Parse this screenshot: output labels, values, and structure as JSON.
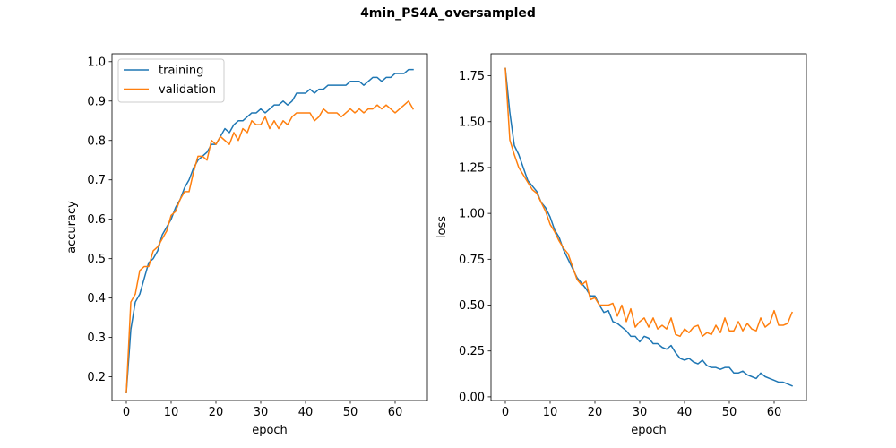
{
  "figure": {
    "title": "4min_PS4A_oversampled"
  },
  "colors": {
    "training": "#1f77b4",
    "validation": "#ff7f0e",
    "axes": "#000000",
    "background": "#ffffff"
  },
  "chart_data": [
    {
      "type": "line",
      "title": "",
      "xlabel": "epoch",
      "ylabel": "accuracy",
      "xlim": [
        -3.2,
        67.2
      ],
      "ylim": [
        0.14,
        1.02
      ],
      "xticks": [
        0,
        10,
        20,
        30,
        40,
        50,
        60
      ],
      "xtick_labels": [
        "0",
        "10",
        "20",
        "30",
        "40",
        "50",
        "60"
      ],
      "yticks": [
        0.2,
        0.3,
        0.4,
        0.5,
        0.6,
        0.7,
        0.8,
        0.9,
        1.0
      ],
      "ytick_labels": [
        "0.2",
        "0.3",
        "0.4",
        "0.5",
        "0.6",
        "0.7",
        "0.8",
        "0.9",
        "1.0"
      ],
      "legend": {
        "placement": "upper-left",
        "entries": [
          "training",
          "validation"
        ]
      },
      "grid": false,
      "x": [
        0,
        1,
        2,
        3,
        4,
        5,
        6,
        7,
        8,
        9,
        10,
        11,
        12,
        13,
        14,
        15,
        16,
        17,
        18,
        19,
        20,
        21,
        22,
        23,
        24,
        25,
        26,
        27,
        28,
        29,
        30,
        31,
        32,
        33,
        34,
        35,
        36,
        37,
        38,
        39,
        40,
        41,
        42,
        43,
        44,
        45,
        46,
        47,
        48,
        49,
        50,
        51,
        52,
        53,
        54,
        55,
        56,
        57,
        58,
        59,
        60,
        61,
        62,
        63,
        64
      ],
      "series": [
        {
          "name": "training",
          "values": [
            0.16,
            0.32,
            0.39,
            0.41,
            0.45,
            0.49,
            0.5,
            0.52,
            0.56,
            0.58,
            0.6,
            0.63,
            0.65,
            0.68,
            0.7,
            0.73,
            0.75,
            0.76,
            0.77,
            0.79,
            0.79,
            0.81,
            0.83,
            0.82,
            0.84,
            0.85,
            0.85,
            0.86,
            0.87,
            0.87,
            0.88,
            0.87,
            0.88,
            0.89,
            0.89,
            0.9,
            0.89,
            0.9,
            0.92,
            0.92,
            0.92,
            0.93,
            0.92,
            0.93,
            0.93,
            0.94,
            0.94,
            0.94,
            0.94,
            0.94,
            0.95,
            0.95,
            0.95,
            0.94,
            0.95,
            0.96,
            0.96,
            0.95,
            0.96,
            0.96,
            0.97,
            0.97,
            0.97,
            0.98,
            0.98
          ]
        },
        {
          "name": "validation",
          "values": [
            0.16,
            0.39,
            0.41,
            0.47,
            0.48,
            0.48,
            0.52,
            0.53,
            0.55,
            0.57,
            0.61,
            0.62,
            0.65,
            0.67,
            0.67,
            0.72,
            0.76,
            0.76,
            0.75,
            0.8,
            0.79,
            0.81,
            0.8,
            0.79,
            0.82,
            0.8,
            0.83,
            0.82,
            0.85,
            0.84,
            0.84,
            0.86,
            0.83,
            0.85,
            0.83,
            0.85,
            0.84,
            0.86,
            0.87,
            0.87,
            0.87,
            0.87,
            0.85,
            0.86,
            0.88,
            0.87,
            0.87,
            0.87,
            0.86,
            0.87,
            0.88,
            0.87,
            0.88,
            0.87,
            0.88,
            0.88,
            0.89,
            0.88,
            0.89,
            0.88,
            0.87,
            0.88,
            0.89,
            0.9,
            0.88
          ]
        }
      ]
    },
    {
      "type": "line",
      "title": "",
      "xlabel": "epoch",
      "ylabel": "loss",
      "xlim": [
        -3.2,
        67.2
      ],
      "ylim": [
        -0.02,
        1.87
      ],
      "xticks": [
        0,
        10,
        20,
        30,
        40,
        50,
        60
      ],
      "xtick_labels": [
        "0",
        "10",
        "20",
        "30",
        "40",
        "50",
        "60"
      ],
      "yticks": [
        0.0,
        0.25,
        0.5,
        0.75,
        1.0,
        1.25,
        1.5,
        1.75
      ],
      "ytick_labels": [
        "0.00",
        "0.25",
        "0.50",
        "0.75",
        "1.00",
        "1.25",
        "1.50",
        "1.75"
      ],
      "legend": null,
      "grid": false,
      "x": [
        0,
        1,
        2,
        3,
        4,
        5,
        6,
        7,
        8,
        9,
        10,
        11,
        12,
        13,
        14,
        15,
        16,
        17,
        18,
        19,
        20,
        21,
        22,
        23,
        24,
        25,
        26,
        27,
        28,
        29,
        30,
        31,
        32,
        33,
        34,
        35,
        36,
        37,
        38,
        39,
        40,
        41,
        42,
        43,
        44,
        45,
        46,
        47,
        48,
        49,
        50,
        51,
        52,
        53,
        54,
        55,
        56,
        57,
        58,
        59,
        60,
        61,
        62,
        63,
        64
      ],
      "series": [
        {
          "name": "training",
          "values": [
            1.79,
            1.55,
            1.37,
            1.32,
            1.25,
            1.18,
            1.15,
            1.12,
            1.06,
            1.03,
            0.98,
            0.91,
            0.87,
            0.8,
            0.75,
            0.7,
            0.65,
            0.62,
            0.59,
            0.55,
            0.55,
            0.5,
            0.46,
            0.47,
            0.41,
            0.4,
            0.38,
            0.36,
            0.33,
            0.33,
            0.3,
            0.33,
            0.32,
            0.29,
            0.29,
            0.27,
            0.26,
            0.28,
            0.24,
            0.21,
            0.2,
            0.21,
            0.19,
            0.18,
            0.2,
            0.17,
            0.16,
            0.16,
            0.15,
            0.16,
            0.16,
            0.13,
            0.13,
            0.14,
            0.12,
            0.11,
            0.1,
            0.13,
            0.11,
            0.1,
            0.09,
            0.08,
            0.08,
            0.07,
            0.06
          ]
        },
        {
          "name": "validation",
          "values": [
            1.79,
            1.4,
            1.32,
            1.25,
            1.21,
            1.17,
            1.13,
            1.11,
            1.06,
            1.01,
            0.94,
            0.9,
            0.85,
            0.81,
            0.78,
            0.71,
            0.64,
            0.61,
            0.63,
            0.53,
            0.54,
            0.5,
            0.5,
            0.5,
            0.51,
            0.44,
            0.5,
            0.41,
            0.48,
            0.38,
            0.41,
            0.43,
            0.38,
            0.43,
            0.37,
            0.39,
            0.37,
            0.43,
            0.34,
            0.33,
            0.37,
            0.35,
            0.38,
            0.39,
            0.33,
            0.35,
            0.34,
            0.39,
            0.35,
            0.43,
            0.36,
            0.36,
            0.41,
            0.36,
            0.4,
            0.37,
            0.36,
            0.43,
            0.38,
            0.4,
            0.47,
            0.39,
            0.39,
            0.4,
            0.46
          ]
        }
      ]
    }
  ]
}
